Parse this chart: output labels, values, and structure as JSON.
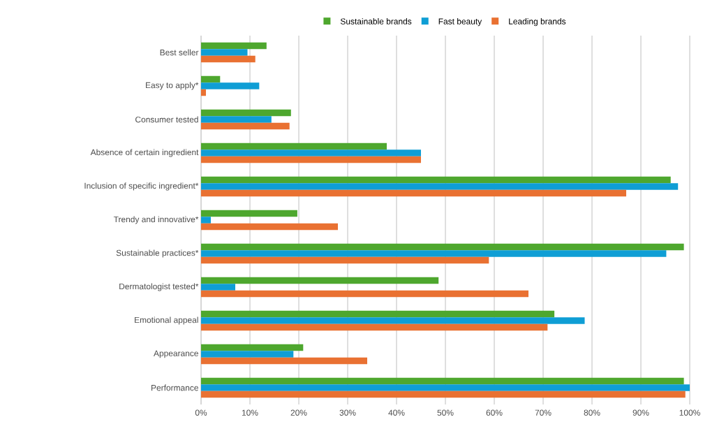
{
  "chart_data": {
    "type": "bar",
    "orientation": "horizontal",
    "categories": [
      "Best seller",
      "Easy to apply*",
      "Consumer tested",
      "Absence of certain ingredient",
      "Inclusion of specific ingredient*",
      "Trendy and innovative*",
      "Sustainable practices*",
      "Dermatologist tested*",
      "Emotional appeal",
      "Appearance",
      "Performance"
    ],
    "series": [
      {
        "name": "Sustainable brands",
        "color": "#4ea72e",
        "values": [
          13.4,
          3.9,
          18.4,
          38,
          96.1,
          19.7,
          98.8,
          48.6,
          72.3,
          20.9,
          98.8
        ]
      },
      {
        "name": "Fast beauty",
        "color": "#0f9ed5",
        "values": [
          9.5,
          11.9,
          14.4,
          45,
          97.6,
          2,
          95.2,
          7,
          78.5,
          18.9,
          100
        ]
      },
      {
        "name": "Leading brands",
        "color": "#e97132",
        "values": [
          11.1,
          1,
          18.1,
          45,
          87,
          28,
          58.9,
          67,
          70.9,
          34,
          99.1
        ]
      }
    ],
    "xlim": [
      0,
      100
    ],
    "xticks": [
      {
        "value": 0,
        "label": "0%"
      },
      {
        "value": 10,
        "label": "10%"
      },
      {
        "value": 20,
        "label": "20%"
      },
      {
        "value": 30,
        "label": "30%"
      },
      {
        "value": 40,
        "label": "40%"
      },
      {
        "value": 50,
        "label": "50%"
      },
      {
        "value": 60,
        "label": "60%"
      },
      {
        "value": 70,
        "label": "70%"
      },
      {
        "value": 80,
        "label": "80%"
      },
      {
        "value": 90,
        "label": "90%"
      },
      {
        "value": 100,
        "label": "100%"
      }
    ],
    "grid": "x",
    "legend": "top"
  }
}
